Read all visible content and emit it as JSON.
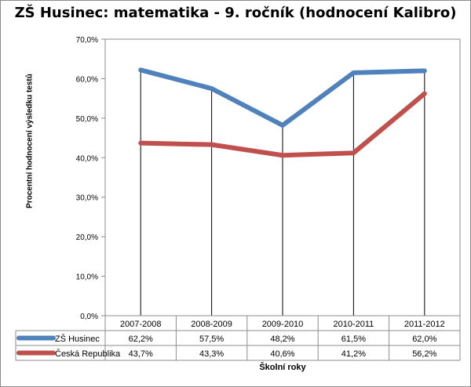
{
  "chart_data": {
    "type": "line",
    "title": "ZŠ Husinec:  matematika - 9. ročník (hodnocení  Kalibro)",
    "ylabel": "Procentní hodnocení výsledku testů",
    "xlabel": "Školní roky",
    "categories": [
      "2007-2008",
      "2008-2009",
      "2009-2010",
      "2010-2011",
      "2011-2012"
    ],
    "ylim": [
      0,
      70
    ],
    "yticks": [
      0,
      10,
      20,
      30,
      40,
      50,
      60,
      70
    ],
    "ytick_labels": [
      "0,0%",
      "10,0%",
      "20,0%",
      "30,0%",
      "40,0%",
      "50,0%",
      "60,0%",
      "70,0%"
    ],
    "grid": "vertical drop lines at categories",
    "legend": "data table below chart",
    "series": [
      {
        "name": "ZŠ Husinec",
        "color": "#4f81bd",
        "values": [
          62.2,
          57.5,
          48.2,
          61.5,
          62.0
        ],
        "labels": [
          "62,2%",
          "57,5%",
          "48,2%",
          "61,5%",
          "62,0%"
        ]
      },
      {
        "name": "Česká Republika",
        "color": "#c0504d",
        "values": [
          43.7,
          43.3,
          40.6,
          41.2,
          56.2
        ],
        "labels": [
          "43,7%",
          "43,3%",
          "40,6%",
          "41,2%",
          "56,2%"
        ]
      }
    ]
  }
}
